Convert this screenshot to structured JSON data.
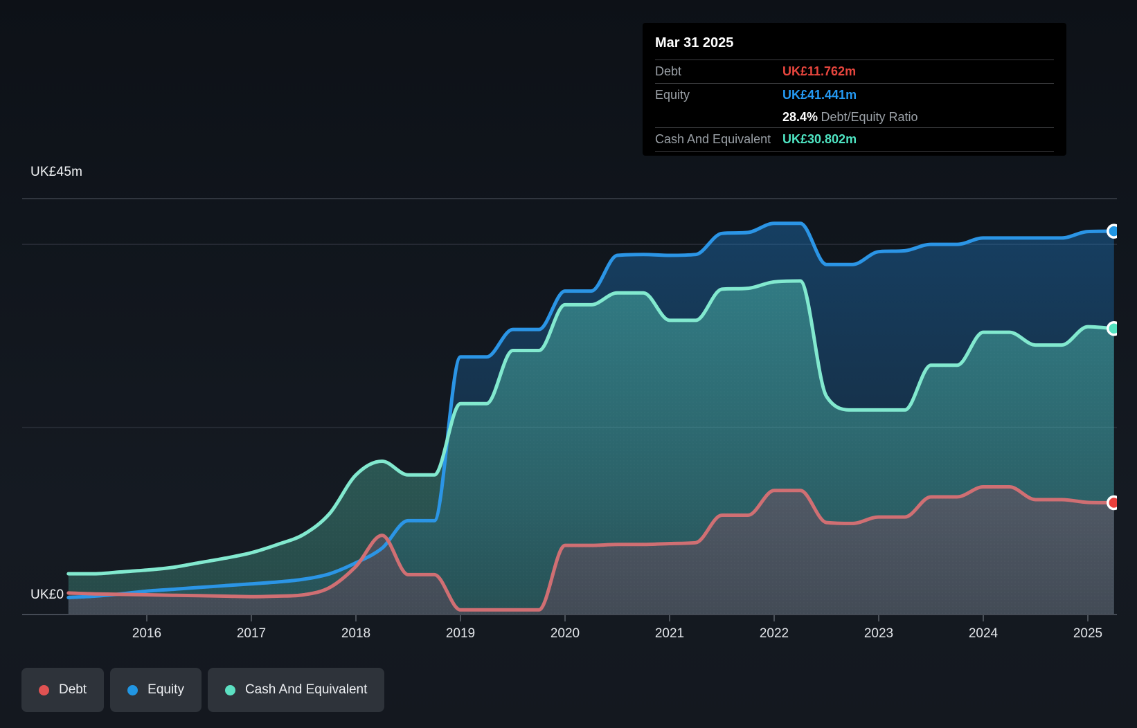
{
  "y_axis": {
    "top": "UK£45m",
    "zero": "UK£0"
  },
  "tooltip": {
    "date": "Mar 31 2025",
    "debt_label": "Debt",
    "debt_value": "UK£11.762m",
    "debt_color": "#e8463e",
    "equity_label": "Equity",
    "equity_value": "UK£41.441m",
    "equity_color": "#2499f2",
    "ratio_value": "28.4%",
    "ratio_label": "Debt/Equity Ratio",
    "cash_label": "Cash And Equivalent",
    "cash_value": "UK£30.802m",
    "cash_color": "#4ee4c2"
  },
  "legend": {
    "items": [
      {
        "label": "Debt",
        "color": "#e05252"
      },
      {
        "label": "Equity",
        "color": "#2196e3"
      },
      {
        "label": "Cash And Equivalent",
        "color": "#5ce0c2"
      }
    ]
  },
  "chart_data": {
    "type": "area",
    "title": "",
    "xlabel": "",
    "ylabel": "UK£ millions",
    "ylim": [
      0,
      45
    ],
    "xlim": [
      2015.25,
      2025.25
    ],
    "grid": "partial",
    "legend_position": "bottom-left",
    "y_axis_labels": {
      "top": "UK£45m",
      "zero": "UK£0"
    },
    "y_gridline_values": [
      45,
      40,
      20
    ],
    "x_label_ticks": [
      2016,
      2017,
      2018,
      2019,
      2020,
      2021,
      2022,
      2023,
      2024,
      2025
    ],
    "x": [
      2015.25,
      2015.5,
      2015.75,
      2016,
      2016.25,
      2016.5,
      2016.75,
      2017,
      2017.25,
      2017.5,
      2017.75,
      2018,
      2018.25,
      2018.5,
      2018.75,
      2019,
      2019.25,
      2019.5,
      2019.75,
      2020,
      2020.25,
      2020.5,
      2020.75,
      2021,
      2021.25,
      2021.5,
      2021.75,
      2022,
      2022.25,
      2022.5,
      2022.75,
      2023,
      2023.25,
      2023.5,
      2023.75,
      2024,
      2024.25,
      2024.5,
      2024.75,
      2025,
      2025.25
    ],
    "series": [
      {
        "name": "Equity",
        "line_color": "#2b95e6",
        "marker_color": "#2196e3",
        "values": [
          1.4,
          1.55,
          1.8,
          2.1,
          2.3,
          2.5,
          2.7,
          2.9,
          3.1,
          3.4,
          4.0,
          5.2,
          6.8,
          9.8,
          9.8,
          27.7,
          27.7,
          30.7,
          30.7,
          34.9,
          34.9,
          38.8,
          38.9,
          38.8,
          38.9,
          41.2,
          41.3,
          42.3,
          42.3,
          37.8,
          37.8,
          39.2,
          39.3,
          40.0,
          40.0,
          40.7,
          40.7,
          40.7,
          40.7,
          41.4,
          41.441
        ]
      },
      {
        "name": "Cash And Equivalent",
        "line_color": "#82e9cf",
        "marker_color": "#53e2c0",
        "values": [
          4.0,
          4.0,
          4.2,
          4.4,
          4.7,
          5.2,
          5.7,
          6.3,
          7.2,
          8.3,
          10.6,
          14.8,
          16.3,
          14.8,
          14.8,
          22.6,
          22.6,
          28.4,
          28.4,
          33.4,
          33.4,
          34.7,
          34.7,
          31.7,
          31.7,
          35.1,
          35.2,
          35.9,
          36.0,
          23.4,
          21.9,
          21.9,
          21.9,
          26.8,
          26.8,
          30.4,
          30.4,
          29.0,
          29.0,
          31.0,
          30.802
        ]
      },
      {
        "name": "Debt",
        "line_color": "#d06f73",
        "marker_color": "#e73f3c",
        "values": [
          1.9,
          1.8,
          1.75,
          1.7,
          1.65,
          1.6,
          1.55,
          1.5,
          1.55,
          1.7,
          2.5,
          4.8,
          8.2,
          3.9,
          3.9,
          0.05,
          0.05,
          0.05,
          0.05,
          7.1,
          7.1,
          7.2,
          7.2,
          7.3,
          7.4,
          10.4,
          10.4,
          13.1,
          13.1,
          9.6,
          9.5,
          10.2,
          10.2,
          12.4,
          12.4,
          13.5,
          13.5,
          12.1,
          12.1,
          11.8,
          11.762
        ]
      }
    ]
  }
}
